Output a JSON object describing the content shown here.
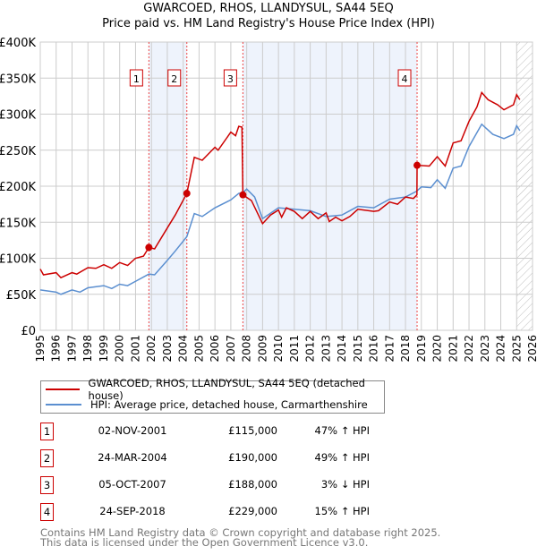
{
  "chart_data": {
    "type": "line",
    "title": "GWARCOED, RHOS, LLANDYSUL, SA44 5EQ",
    "subtitle": "Price paid vs. HM Land Registry's House Price Index (HPI)",
    "xlim": [
      1995,
      2026
    ],
    "ylim": [
      0,
      400000
    ],
    "x_ticks": [
      "1995",
      "1996",
      "1997",
      "1998",
      "1999",
      "2000",
      "2001",
      "2002",
      "2003",
      "2004",
      "2005",
      "2006",
      "2007",
      "2008",
      "2009",
      "2010",
      "2011",
      "2012",
      "2013",
      "2014",
      "2015",
      "2016",
      "2017",
      "2018",
      "2019",
      "2020",
      "2021",
      "2022",
      "2023",
      "2024",
      "2025",
      "2026"
    ],
    "y_ticks": [
      {
        "v": 0,
        "label": "£0"
      },
      {
        "v": 50000,
        "label": "£50K"
      },
      {
        "v": 100000,
        "label": "£100K"
      },
      {
        "v": 150000,
        "label": "£150K"
      },
      {
        "v": 200000,
        "label": "£200K"
      },
      {
        "v": 250000,
        "label": "£250K"
      },
      {
        "v": 300000,
        "label": "£300K"
      },
      {
        "v": 350000,
        "label": "£350K"
      },
      {
        "v": 400000,
        "label": "£400K"
      }
    ],
    "grid": true,
    "series": [
      {
        "name": "GWARCOED, RHOS, LLANDYSUL, SA44 5EQ (detached house)",
        "color": "#cc0000",
        "points": [
          [
            1995,
            85
          ],
          [
            1995.2,
            77
          ],
          [
            1996,
            80
          ],
          [
            1996.3,
            73
          ],
          [
            1997,
            80
          ],
          [
            1997.3,
            78
          ],
          [
            1998,
            87
          ],
          [
            1998.5,
            86
          ],
          [
            1999,
            91
          ],
          [
            1999.5,
            86
          ],
          [
            2000,
            94
          ],
          [
            2000.5,
            90
          ],
          [
            2001,
            100
          ],
          [
            2001.5,
            103
          ],
          [
            2001.84,
            115
          ],
          [
            2002.2,
            113
          ],
          [
            2003,
            142
          ],
          [
            2003.5,
            160
          ],
          [
            2004.23,
            190
          ],
          [
            2004.7,
            240
          ],
          [
            2005.2,
            236
          ],
          [
            2006,
            254
          ],
          [
            2006.2,
            250
          ],
          [
            2007,
            275
          ],
          [
            2007.3,
            270
          ],
          [
            2007.5,
            283
          ],
          [
            2007.7,
            282
          ],
          [
            2007.76,
            188
          ],
          [
            2008.3,
            180
          ],
          [
            2009,
            148
          ],
          [
            2009.5,
            160
          ],
          [
            2010,
            167
          ],
          [
            2010.2,
            157
          ],
          [
            2010.5,
            170
          ],
          [
            2011,
            165
          ],
          [
            2011.5,
            155
          ],
          [
            2012,
            165
          ],
          [
            2012.5,
            155
          ],
          [
            2013,
            163
          ],
          [
            2013.2,
            151
          ],
          [
            2013.6,
            157
          ],
          [
            2014,
            152
          ],
          [
            2014.5,
            158
          ],
          [
            2015,
            168
          ],
          [
            2016,
            165
          ],
          [
            2016.3,
            166
          ],
          [
            2017,
            178
          ],
          [
            2017.5,
            175
          ],
          [
            2018,
            185
          ],
          [
            2018.5,
            183
          ],
          [
            2018.72,
            188
          ],
          [
            2018.73,
            229
          ],
          [
            2019.5,
            228
          ],
          [
            2020,
            241
          ],
          [
            2020.5,
            228
          ],
          [
            2021,
            260
          ],
          [
            2021.5,
            263
          ],
          [
            2022,
            290
          ],
          [
            2022.5,
            310
          ],
          [
            2022.8,
            330
          ],
          [
            2023.2,
            320
          ],
          [
            2023.8,
            313
          ],
          [
            2024.2,
            306
          ],
          [
            2024.8,
            313
          ],
          [
            2025,
            327
          ],
          [
            2025.2,
            320
          ]
        ]
      },
      {
        "name": "HPI: Average price, detached house, Carmarthenshire",
        "color": "#5b8fd0",
        "points": [
          [
            1995,
            56
          ],
          [
            1996,
            53
          ],
          [
            1996.3,
            50
          ],
          [
            1997,
            56
          ],
          [
            1997.5,
            53
          ],
          [
            1998,
            59
          ],
          [
            1999,
            62
          ],
          [
            1999.5,
            58
          ],
          [
            2000,
            64
          ],
          [
            2000.5,
            62
          ],
          [
            2001,
            68
          ],
          [
            2001.84,
            78
          ],
          [
            2002.2,
            77
          ],
          [
            2003,
            97
          ],
          [
            2003.5,
            110
          ],
          [
            2004.23,
            130
          ],
          [
            2004.7,
            162
          ],
          [
            2005.2,
            158
          ],
          [
            2006,
            170
          ],
          [
            2007,
            181
          ],
          [
            2007.5,
            190
          ],
          [
            2007.76,
            191
          ],
          [
            2008,
            196
          ],
          [
            2008.5,
            185
          ],
          [
            2009,
            155
          ],
          [
            2010,
            170
          ],
          [
            2011,
            168
          ],
          [
            2012,
            166
          ],
          [
            2013,
            158
          ],
          [
            2014,
            160
          ],
          [
            2015,
            172
          ],
          [
            2016,
            170
          ],
          [
            2017,
            182
          ],
          [
            2018,
            185
          ],
          [
            2018.7,
            193
          ],
          [
            2019,
            199
          ],
          [
            2019.6,
            198
          ],
          [
            2020,
            209
          ],
          [
            2020.5,
            197
          ],
          [
            2021,
            225
          ],
          [
            2021.5,
            228
          ],
          [
            2022,
            255
          ],
          [
            2022.8,
            286
          ],
          [
            2023.5,
            272
          ],
          [
            2024.2,
            266
          ],
          [
            2024.8,
            272
          ],
          [
            2025,
            284
          ],
          [
            2025.2,
            277
          ]
        ]
      }
    ],
    "value_units": "thousand GBP",
    "sales": [
      {
        "n": "1",
        "x": 2001.84,
        "y": 115
      },
      {
        "n": "2",
        "x": 2004.23,
        "y": 190
      },
      {
        "n": "3",
        "x": 2007.76,
        "y": 188
      },
      {
        "n": "4",
        "x": 2018.73,
        "y": 229
      }
    ],
    "shaded_ranges": [
      [
        2001.84,
        2004.23
      ],
      [
        2007.76,
        2018.73
      ]
    ],
    "hatched_from": 2025.0,
    "legend_position": "below"
  },
  "table": [
    {
      "n": "1",
      "date": "02-NOV-2001",
      "price": "£115,000",
      "hpi": "47% ↑ HPI"
    },
    {
      "n": "2",
      "date": "24-MAR-2004",
      "price": "£190,000",
      "hpi": "49% ↑ HPI"
    },
    {
      "n": "3",
      "date": "05-OCT-2007",
      "price": "£188,000",
      "hpi": "3% ↓ HPI"
    },
    {
      "n": "4",
      "date": "24-SEP-2018",
      "price": "£229,000",
      "hpi": "15% ↑ HPI"
    }
  ],
  "footer": [
    "Contains HM Land Registry data © Crown copyright and database right 2025.",
    "This data is licensed under the Open Government Licence v3.0."
  ]
}
